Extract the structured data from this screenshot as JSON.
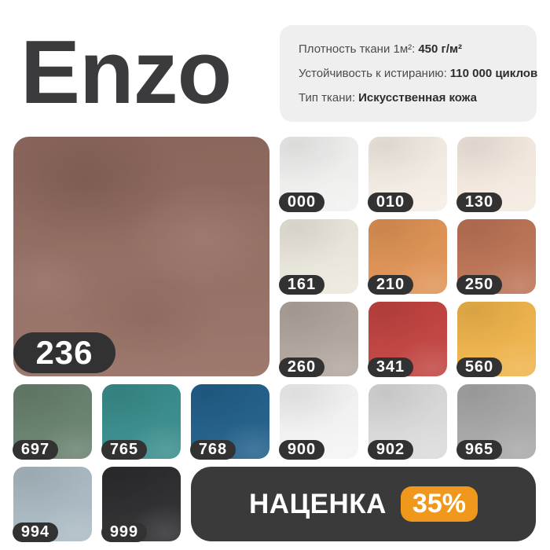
{
  "title": "Enzo",
  "specs": {
    "items": [
      {
        "label": "Плотность ткани 1м²:",
        "value": "450 г/м²"
      },
      {
        "label": "Устойчивость к истиранию:",
        "value": "110 000 циклов"
      },
      {
        "label": "Тип ткани:",
        "value": "Искусственная кожа"
      }
    ]
  },
  "featured": {
    "code": "236",
    "color": "#977065"
  },
  "swatches": [
    {
      "code": "000",
      "color": "#f2f2f1"
    },
    {
      "code": "010",
      "color": "#f5eee5"
    },
    {
      "code": "130",
      "color": "#f5ebe1"
    },
    {
      "code": "161",
      "color": "#ece8dd"
    },
    {
      "code": "210",
      "color": "#e09354"
    },
    {
      "code": "250",
      "color": "#bd7355"
    },
    {
      "code": "260",
      "color": "#b2a79e"
    },
    {
      "code": "341",
      "color": "#c24340"
    },
    {
      "code": "560",
      "color": "#f0b44b"
    },
    {
      "code": "697",
      "color": "#68816e"
    },
    {
      "code": "765",
      "color": "#388d8d"
    },
    {
      "code": "768",
      "color": "#215f8b"
    },
    {
      "code": "900",
      "color": "#f5f5f5"
    },
    {
      "code": "902",
      "color": "#dbdbdb"
    },
    {
      "code": "965",
      "color": "#a8a8a8"
    },
    {
      "code": "994",
      "color": "#abbac3"
    },
    {
      "code": "999",
      "color": "#2c2c2e"
    }
  ],
  "promo": {
    "label": "НАЦЕНКА",
    "value": "35%",
    "badge_color": "#f0981b"
  },
  "colors": {
    "title": "#3b3b3d",
    "card_bg": "#efefef",
    "badge_dark": "#323232",
    "banner_dark": "#3a3a3a",
    "accent_orange": "#f0981b"
  }
}
